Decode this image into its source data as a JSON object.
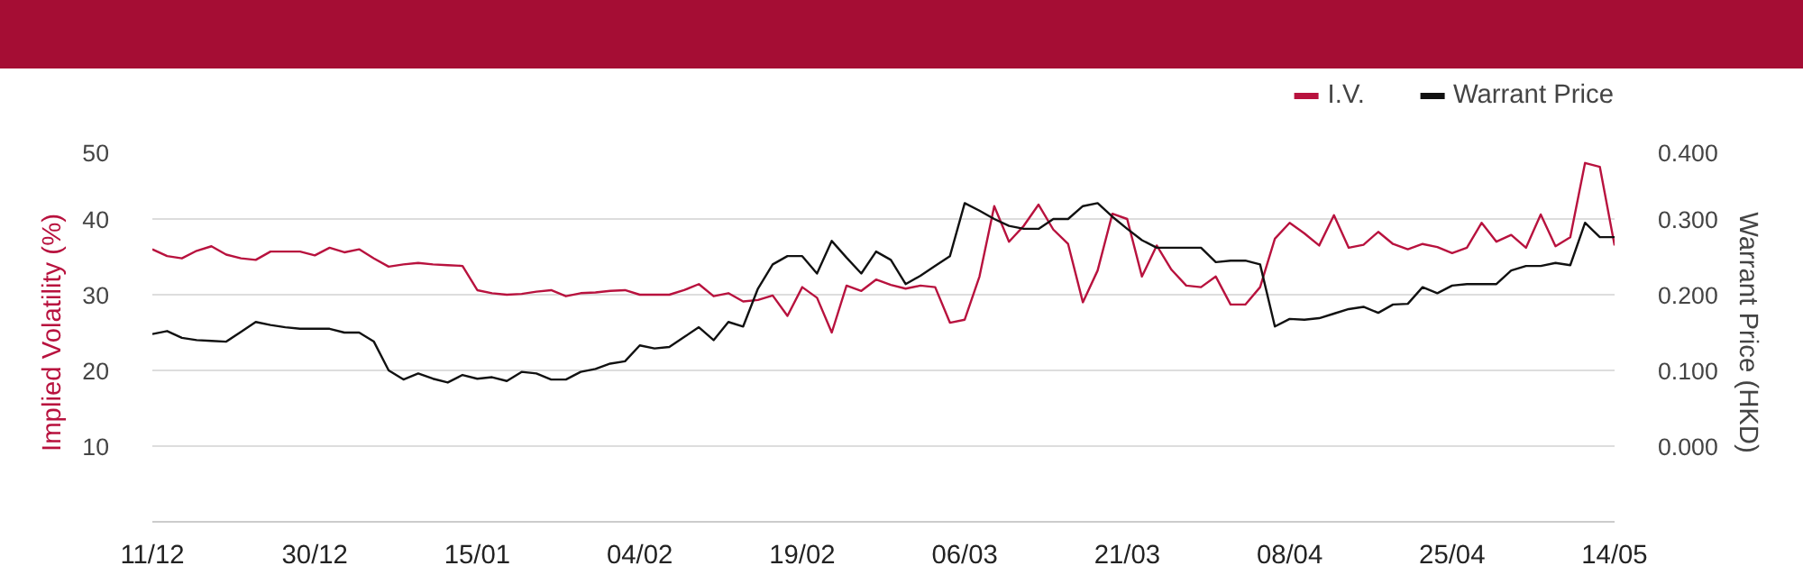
{
  "chart_data": {
    "type": "line",
    "categories": [
      "11/12",
      null,
      null,
      null,
      null,
      null,
      null,
      null,
      null,
      null,
      null,
      "30/12",
      null,
      null,
      null,
      null,
      null,
      null,
      null,
      null,
      null,
      null,
      "15/01",
      null,
      null,
      null,
      null,
      null,
      null,
      null,
      null,
      null,
      null,
      "04/02",
      null,
      null,
      null,
      null,
      null,
      null,
      null,
      null,
      null,
      null,
      "19/02",
      null,
      null,
      null,
      null,
      null,
      null,
      null,
      null,
      null,
      null,
      "06/03",
      null,
      null,
      null,
      null,
      null,
      null,
      null,
      null,
      null,
      null,
      "21/03",
      null,
      null,
      null,
      null,
      null,
      null,
      null,
      null,
      null,
      null,
      "08/04",
      null,
      null,
      null,
      null,
      null,
      null,
      null,
      null,
      null,
      null,
      "25/04",
      null,
      null,
      null,
      null,
      null,
      null,
      null,
      null,
      null,
      null,
      "14/05"
    ],
    "series": [
      {
        "name": "I.V.",
        "color": "#b8123e",
        "values": [
          36.0,
          35.1,
          34.8,
          35.8,
          36.4,
          35.3,
          34.8,
          34.6,
          35.7,
          35.7,
          35.7,
          35.2,
          36.2,
          35.6,
          36.0,
          34.8,
          33.7,
          34.0,
          34.2,
          34.0,
          33.9,
          33.8,
          30.6,
          30.2,
          30.0,
          30.1,
          30.4,
          30.6,
          29.8,
          30.2,
          30.3,
          30.5,
          30.6,
          30.0,
          30.0,
          30.0,
          30.6,
          31.4,
          29.8,
          30.2,
          29.1,
          29.3,
          29.9,
          27.2,
          31.0,
          29.6,
          25.0,
          31.2,
          30.5,
          32.0,
          31.3,
          30.8,
          31.2,
          31.0,
          26.3,
          26.7,
          32.4,
          41.7,
          37.0,
          39.1,
          41.9,
          38.6,
          36.7,
          29.0,
          33.2,
          40.7,
          40.0,
          32.4,
          36.5,
          33.3,
          31.2,
          31.0,
          32.4,
          28.7,
          28.7,
          31.0,
          37.4,
          39.5,
          38.1,
          36.5,
          40.5,
          36.2,
          36.6,
          38.3,
          36.7,
          36.0,
          36.7,
          36.3,
          35.5,
          36.2,
          39.5,
          37.0,
          37.9,
          36.2,
          40.6,
          36.4,
          37.6,
          47.4,
          46.9,
          36.5
        ]
      },
      {
        "name": "Warrant Price",
        "color": "#111111",
        "axis": "y2",
        "values": [
          0.148,
          0.152,
          0.143,
          0.14,
          0.139,
          0.138,
          0.151,
          0.164,
          0.16,
          0.157,
          0.155,
          0.155,
          0.155,
          0.15,
          0.15,
          0.138,
          0.1,
          0.088,
          0.096,
          0.089,
          0.084,
          0.094,
          0.089,
          0.091,
          0.086,
          0.098,
          0.096,
          0.088,
          0.088,
          0.098,
          0.102,
          0.109,
          0.112,
          0.133,
          0.129,
          0.131,
          0.144,
          0.157,
          0.14,
          0.164,
          0.158,
          0.208,
          0.24,
          0.251,
          0.251,
          0.228,
          0.271,
          0.249,
          0.228,
          0.257,
          0.246,
          0.214,
          0.225,
          0.238,
          0.251,
          0.321,
          0.311,
          0.3,
          0.291,
          0.287,
          0.287,
          0.3,
          0.3,
          0.317,
          0.321,
          0.303,
          0.287,
          0.272,
          0.262,
          0.262,
          0.262,
          0.262,
          0.243,
          0.245,
          0.245,
          0.24,
          0.158,
          0.168,
          0.167,
          0.169,
          0.175,
          0.181,
          0.184,
          0.176,
          0.187,
          0.188,
          0.21,
          0.202,
          0.212,
          0.214,
          0.214,
          0.214,
          0.232,
          0.238,
          0.238,
          0.242,
          0.239,
          0.295,
          0.276,
          0.276
        ]
      }
    ],
    "ylabel": "Implied Volatility (%)",
    "y2label": "Warrant Price (HKD)",
    "ylim": [
      0,
      50
    ],
    "yticks": [
      10,
      20,
      30,
      40,
      50
    ],
    "y2lim": [
      -0.1,
      0.4
    ],
    "y2ticks": [
      {
        "value": 0,
        "label": "0.000"
      },
      {
        "value": 0.1,
        "label": "0.100"
      },
      {
        "value": 0.2,
        "label": "0.200"
      },
      {
        "value": 0.3,
        "label": "0.300"
      },
      {
        "value": 0.4,
        "label": "0.400"
      }
    ],
    "grid": "y",
    "legend": "top right",
    "marker": "none",
    "line_style": "solid"
  }
}
